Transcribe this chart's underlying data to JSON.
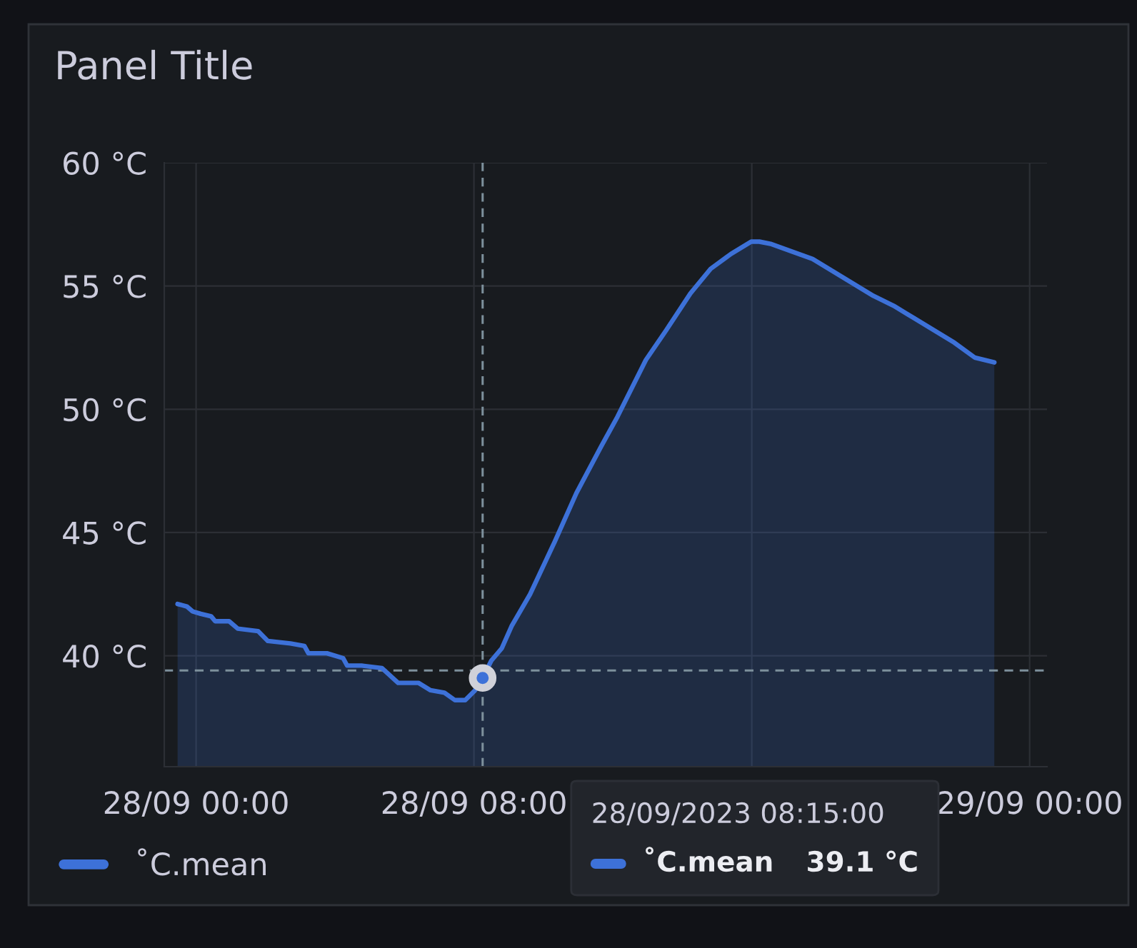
{
  "chart_data": {
    "type": "area",
    "title": "Panel Title",
    "x": [
      "2023-09-27T23:28",
      "2023-09-27T23:44",
      "2023-09-27T23:54",
      "2023-09-28T00:08",
      "2023-09-28T00:26",
      "2023-09-28T00:33",
      "2023-09-28T00:57",
      "2023-09-28T01:12",
      "2023-09-28T01:47",
      "2023-09-28T02:04",
      "2023-09-28T02:43",
      "2023-09-28T03:07",
      "2023-09-28T03:14",
      "2023-09-28T03:46",
      "2023-09-28T04:14",
      "2023-09-28T04:21",
      "2023-09-28T04:46",
      "2023-09-28T05:21",
      "2023-09-28T05:49",
      "2023-09-28T06:24",
      "2023-09-28T06:45",
      "2023-09-28T07:09",
      "2023-09-28T07:27",
      "2023-09-28T07:45",
      "2023-09-28T08:02",
      "2023-09-28T08:15",
      "2023-09-28T08:30",
      "2023-09-28T08:48",
      "2023-09-28T09:05",
      "2023-09-28T09:37",
      "2023-09-28T10:19",
      "2023-09-28T10:57",
      "2023-09-28T11:40",
      "2023-09-28T12:08",
      "2023-09-28T12:57",
      "2023-09-28T13:32",
      "2023-09-28T14:14",
      "2023-09-28T14:49",
      "2023-09-28T15:24",
      "2023-09-28T15:59",
      "2023-09-28T16:13",
      "2023-09-28T16:34",
      "2023-09-28T17:09",
      "2023-09-28T17:45",
      "2023-09-28T18:20",
      "2023-09-28T18:55",
      "2023-09-28T19:30",
      "2023-09-28T20:05",
      "2023-09-28T20:40",
      "2023-09-28T21:15",
      "2023-09-28T21:50",
      "2023-09-28T22:25",
      "2023-09-28T22:59"
    ],
    "series": [
      {
        "name": "˚C.mean",
        "color": "#3d71d8",
        "values": [
          42.1,
          42.0,
          41.8,
          41.7,
          41.6,
          41.4,
          41.4,
          41.1,
          41.0,
          40.6,
          40.5,
          40.4,
          40.1,
          40.1,
          39.9,
          39.6,
          39.6,
          39.5,
          38.9,
          38.9,
          38.6,
          38.5,
          38.2,
          38.2,
          38.6,
          39.1,
          39.8,
          40.3,
          41.2,
          42.5,
          44.6,
          46.6,
          48.5,
          49.7,
          52.0,
          53.2,
          54.7,
          55.7,
          56.3,
          56.8,
          56.8,
          56.7,
          56.4,
          56.1,
          55.6,
          55.1,
          54.6,
          54.2,
          53.7,
          53.2,
          52.7,
          52.1,
          51.9
        ]
      },
      {
        "type": "scatter",
        "marker": "circle",
        "color": "#3d71d8",
        "x": [
          "2023-09-28T08:15"
        ],
        "values": [
          39.1
        ]
      }
    ],
    "xlim": [
      "2023-09-27T23:05",
      "2023-09-29T00:30"
    ],
    "xticks": [
      {
        "value": "2023-09-28T00:00",
        "label": "28/09 00:00"
      },
      {
        "value": "2023-09-28T08:00",
        "label": "28/09 08:00"
      },
      {
        "value": "2023-09-28T16:00",
        "label": null
      },
      {
        "value": "2023-09-29T00:00",
        "label": "29/09 00:00"
      }
    ],
    "ylim": [
      35.5,
      60
    ],
    "yticks": [
      {
        "value": 40,
        "label": "40 °C"
      },
      {
        "value": 45,
        "label": "45 °C"
      },
      {
        "value": 50,
        "label": "50 °C"
      },
      {
        "value": 55,
        "label": "55 °C"
      },
      {
        "value": 60,
        "label": "60 °C"
      }
    ],
    "grid": true,
    "legend": "bottom left",
    "line_style": "solid",
    "ref_lines": [
      {
        "axis": "x",
        "value": "2023-09-28T08:15",
        "color": "#7d909c",
        "line_style": "dashed"
      },
      {
        "axis": "y",
        "value": 39.4,
        "color": "#7d909c",
        "line_style": "dashed"
      }
    ],
    "annotations": [
      "28/09/2023 08:15:00",
      "˚C.mean",
      "39.1 °C"
    ]
  }
}
